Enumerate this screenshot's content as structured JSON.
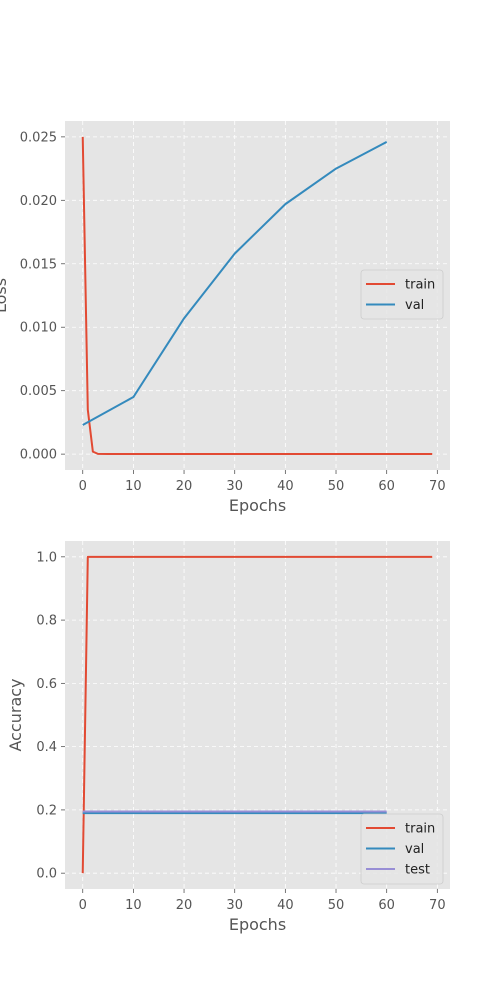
{
  "colors": {
    "panel_bg": "#e5e5e5",
    "grid": "#ffffff",
    "tick_text": "#555555",
    "label_text": "#555555",
    "train": "#e24a33",
    "val": "#348abd",
    "test": "#988ed5"
  },
  "chart_data": [
    {
      "type": "line",
      "xlabel": "Epochs",
      "ylabel": "Loss",
      "xlim": [
        -3.5,
        72.5
      ],
      "ylim": [
        -0.00125,
        0.02625
      ],
      "xticks": [
        0,
        10,
        20,
        30,
        40,
        50,
        60,
        70
      ],
      "xtick_labels": [
        "0",
        "10",
        "20",
        "30",
        "40",
        "50",
        "60",
        "70"
      ],
      "yticks": [
        0.0,
        0.005,
        0.01,
        0.015,
        0.02,
        0.025
      ],
      "ytick_labels": [
        "0.000",
        "0.005",
        "0.010",
        "0.015",
        "0.020",
        "0.025"
      ],
      "grid": true,
      "legend_position": "center-right",
      "series": [
        {
          "name": "train",
          "color_key": "train",
          "x": [
            0,
            1,
            2,
            3,
            5,
            10,
            20,
            30,
            40,
            50,
            60,
            69
          ],
          "values": [
            0.025,
            0.0035,
            0.0002,
            2e-05,
            1e-05,
            1e-05,
            1e-05,
            1e-05,
            1e-05,
            1e-05,
            1e-05,
            1e-05
          ]
        },
        {
          "name": "val",
          "color_key": "val",
          "x": [
            0,
            10,
            20,
            30,
            40,
            50,
            60
          ],
          "values": [
            0.0023,
            0.0045,
            0.0107,
            0.0158,
            0.0197,
            0.0225,
            0.0246
          ]
        }
      ]
    },
    {
      "type": "line",
      "xlabel": "Epochs",
      "ylabel": "Accuracy",
      "xlim": [
        -3.5,
        72.5
      ],
      "ylim": [
        -0.05,
        1.05
      ],
      "xticks": [
        0,
        10,
        20,
        30,
        40,
        50,
        60,
        70
      ],
      "xtick_labels": [
        "0",
        "10",
        "20",
        "30",
        "40",
        "50",
        "60",
        "70"
      ],
      "yticks": [
        0.0,
        0.2,
        0.4,
        0.6,
        0.8,
        1.0
      ],
      "ytick_labels": [
        "0.0",
        "0.2",
        "0.4",
        "0.6",
        "0.8",
        "1.0"
      ],
      "grid": true,
      "legend_position": "lower-right",
      "series": [
        {
          "name": "train",
          "color_key": "train",
          "x": [
            0,
            1,
            2,
            10,
            20,
            30,
            40,
            50,
            60,
            69
          ],
          "values": [
            0.0,
            1.0,
            1.0,
            1.0,
            1.0,
            1.0,
            1.0,
            1.0,
            1.0,
            1.0
          ]
        },
        {
          "name": "val",
          "color_key": "val",
          "x": [
            0,
            10,
            20,
            30,
            40,
            50,
            60
          ],
          "values": [
            0.19,
            0.19,
            0.19,
            0.19,
            0.19,
            0.19,
            0.19
          ]
        },
        {
          "name": "test",
          "color_key": "test",
          "x": [
            0,
            10,
            20,
            30,
            40,
            50,
            60
          ],
          "values": [
            0.195,
            0.195,
            0.195,
            0.195,
            0.195,
            0.195,
            0.195
          ]
        }
      ]
    }
  ]
}
